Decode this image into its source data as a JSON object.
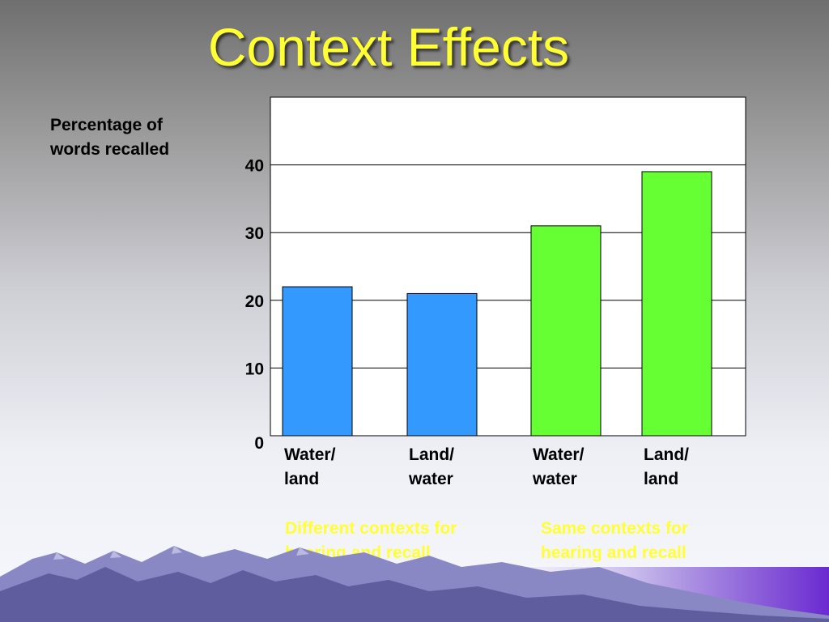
{
  "slide": {
    "title": "Context Effects"
  },
  "chart_data": {
    "type": "bar",
    "ylabel": "Percentage of\nwords recalled",
    "xlabel": "",
    "ylim": [
      0,
      50
    ],
    "yticks": [
      0,
      10,
      20,
      30,
      40
    ],
    "grid": true,
    "categories": [
      "Water/ land",
      "Land/ water",
      "Water/ water",
      "Land/ land"
    ],
    "category_lines": [
      [
        "Water/",
        "land"
      ],
      [
        "Land/",
        "water"
      ],
      [
        "Water/",
        "water"
      ],
      [
        "Land/",
        "land"
      ]
    ],
    "values": [
      22,
      21,
      31,
      39
    ],
    "colors": [
      "#3399ff",
      "#3399ff",
      "#66ff33",
      "#66ff33"
    ],
    "groups": [
      {
        "label": "Different contexts for hearing and recall",
        "lines": [
          "Different contexts for",
          "hearing and recall"
        ],
        "categories": [
          "Water/ land",
          "Land/ water"
        ]
      },
      {
        "label": "Same contexts for hearing and recall",
        "lines": [
          "Same contexts for",
          "hearing and recall"
        ],
        "categories": [
          "Water/ water",
          "Land/ land"
        ]
      }
    ]
  }
}
